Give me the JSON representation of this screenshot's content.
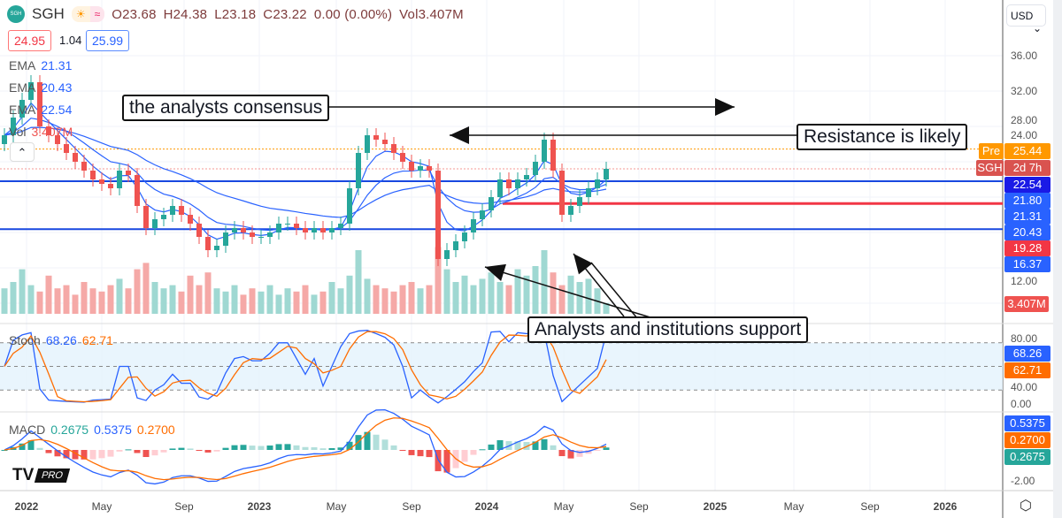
{
  "header": {
    "symbol": "SGH",
    "logo_text": "SGH",
    "open": "O23.68",
    "high": "H24.38",
    "low": "L23.18",
    "close": "C23.22",
    "change": "0.00 (0.00%)",
    "volume": "Vol3.407M",
    "sell_price": "24.95",
    "spread": "1.04",
    "buy_price": "25.99",
    "currency": "USD"
  },
  "legend": {
    "ema1_label": "EMA",
    "ema1": "21.31",
    "ema2_label": "EMA",
    "ema2": "20.43",
    "ema3_label": "EMA",
    "ema3": "22.54",
    "vol_label": "Vol",
    "vol": "3.407M",
    "stoch_label": "Stoch",
    "stoch_k": "68.26",
    "stoch_d": "62.71",
    "macd_label": "MACD",
    "macd_hist": "0.2675",
    "macd_line": "0.5375",
    "macd_signal": "0.2700"
  },
  "annotations": {
    "consensus": "the analysts consensus",
    "resistance": "Resistance is likely",
    "support": "Analysts and institutions support"
  },
  "price_axis": {
    "ticks": [
      "36.00",
      "32.00",
      "28.00",
      "24.00",
      "12.00"
    ],
    "pre_tag": "Pre",
    "pre_value": "25.44",
    "sym_tag": "SGH",
    "countdown": "2d 7h",
    "labels": [
      "22.54",
      "21.80",
      "21.31",
      "20.43",
      "19.28",
      "16.37"
    ],
    "volume_label": "3.407M"
  },
  "stoch_axis": {
    "ticks": [
      "80.00",
      "40.00",
      "0.00"
    ],
    "k": "68.26",
    "d": "62.71"
  },
  "macd_axis": {
    "ticks": [
      "-2.00"
    ],
    "macd": "0.5375",
    "signal": "0.2700",
    "hist": "0.2675"
  },
  "time_axis": [
    "2022",
    "May",
    "Sep",
    "2023",
    "May",
    "Sep",
    "2024",
    "May",
    "Sep",
    "2025",
    "May",
    "Sep",
    "2026"
  ],
  "branding": {
    "logo": "TV",
    "tier": "PRO"
  },
  "colors": {
    "up": "#26a69a",
    "down": "#ef5350",
    "ema": "#2962ff",
    "support": "#1848e0",
    "resistance": "#f23645",
    "stoch_k": "#2962ff",
    "stoch_d": "#ff6d00"
  },
  "chart_data": {
    "type": "candlestick",
    "interval": "2W",
    "levels": {
      "support": [
        21.8,
        16.37
      ],
      "resistance": 19.28,
      "pre": 25.44,
      "last": 23.22
    },
    "close": [
      27,
      29,
      31,
      33,
      28,
      27,
      26,
      25,
      24,
      23,
      22,
      21.5,
      21,
      23,
      22.5,
      19,
      16.5,
      17.5,
      18,
      19,
      18,
      17,
      15.5,
      14,
      14.5,
      16,
      16.5,
      16,
      15.5,
      15.5,
      16,
      17,
      17,
      16.5,
      16,
      16.5,
      16,
      16.5,
      17,
      21,
      25,
      27,
      26.5,
      26,
      25,
      24,
      23,
      23.5,
      23,
      13,
      14,
      15,
      16,
      17.5,
      18.5,
      20,
      22,
      21,
      22,
      22.5,
      24,
      26.5,
      23,
      18,
      19,
      20,
      21,
      22,
      23.2
    ],
    "volume_m": [
      8,
      10,
      14,
      9,
      7,
      12,
      8,
      9,
      6,
      10,
      8,
      7,
      9,
      11,
      8,
      14,
      16,
      10,
      8,
      9,
      7,
      12,
      9,
      13,
      8,
      7,
      9,
      6,
      8,
      7,
      9,
      6,
      8,
      7,
      9,
      6,
      7,
      10,
      8,
      12,
      20,
      11,
      9,
      8,
      7,
      9,
      10,
      8,
      9,
      21,
      14,
      10,
      12,
      9,
      11,
      13,
      10,
      9,
      14,
      12,
      15,
      20,
      13,
      9,
      12,
      10,
      11,
      8,
      3.4
    ]
  }
}
